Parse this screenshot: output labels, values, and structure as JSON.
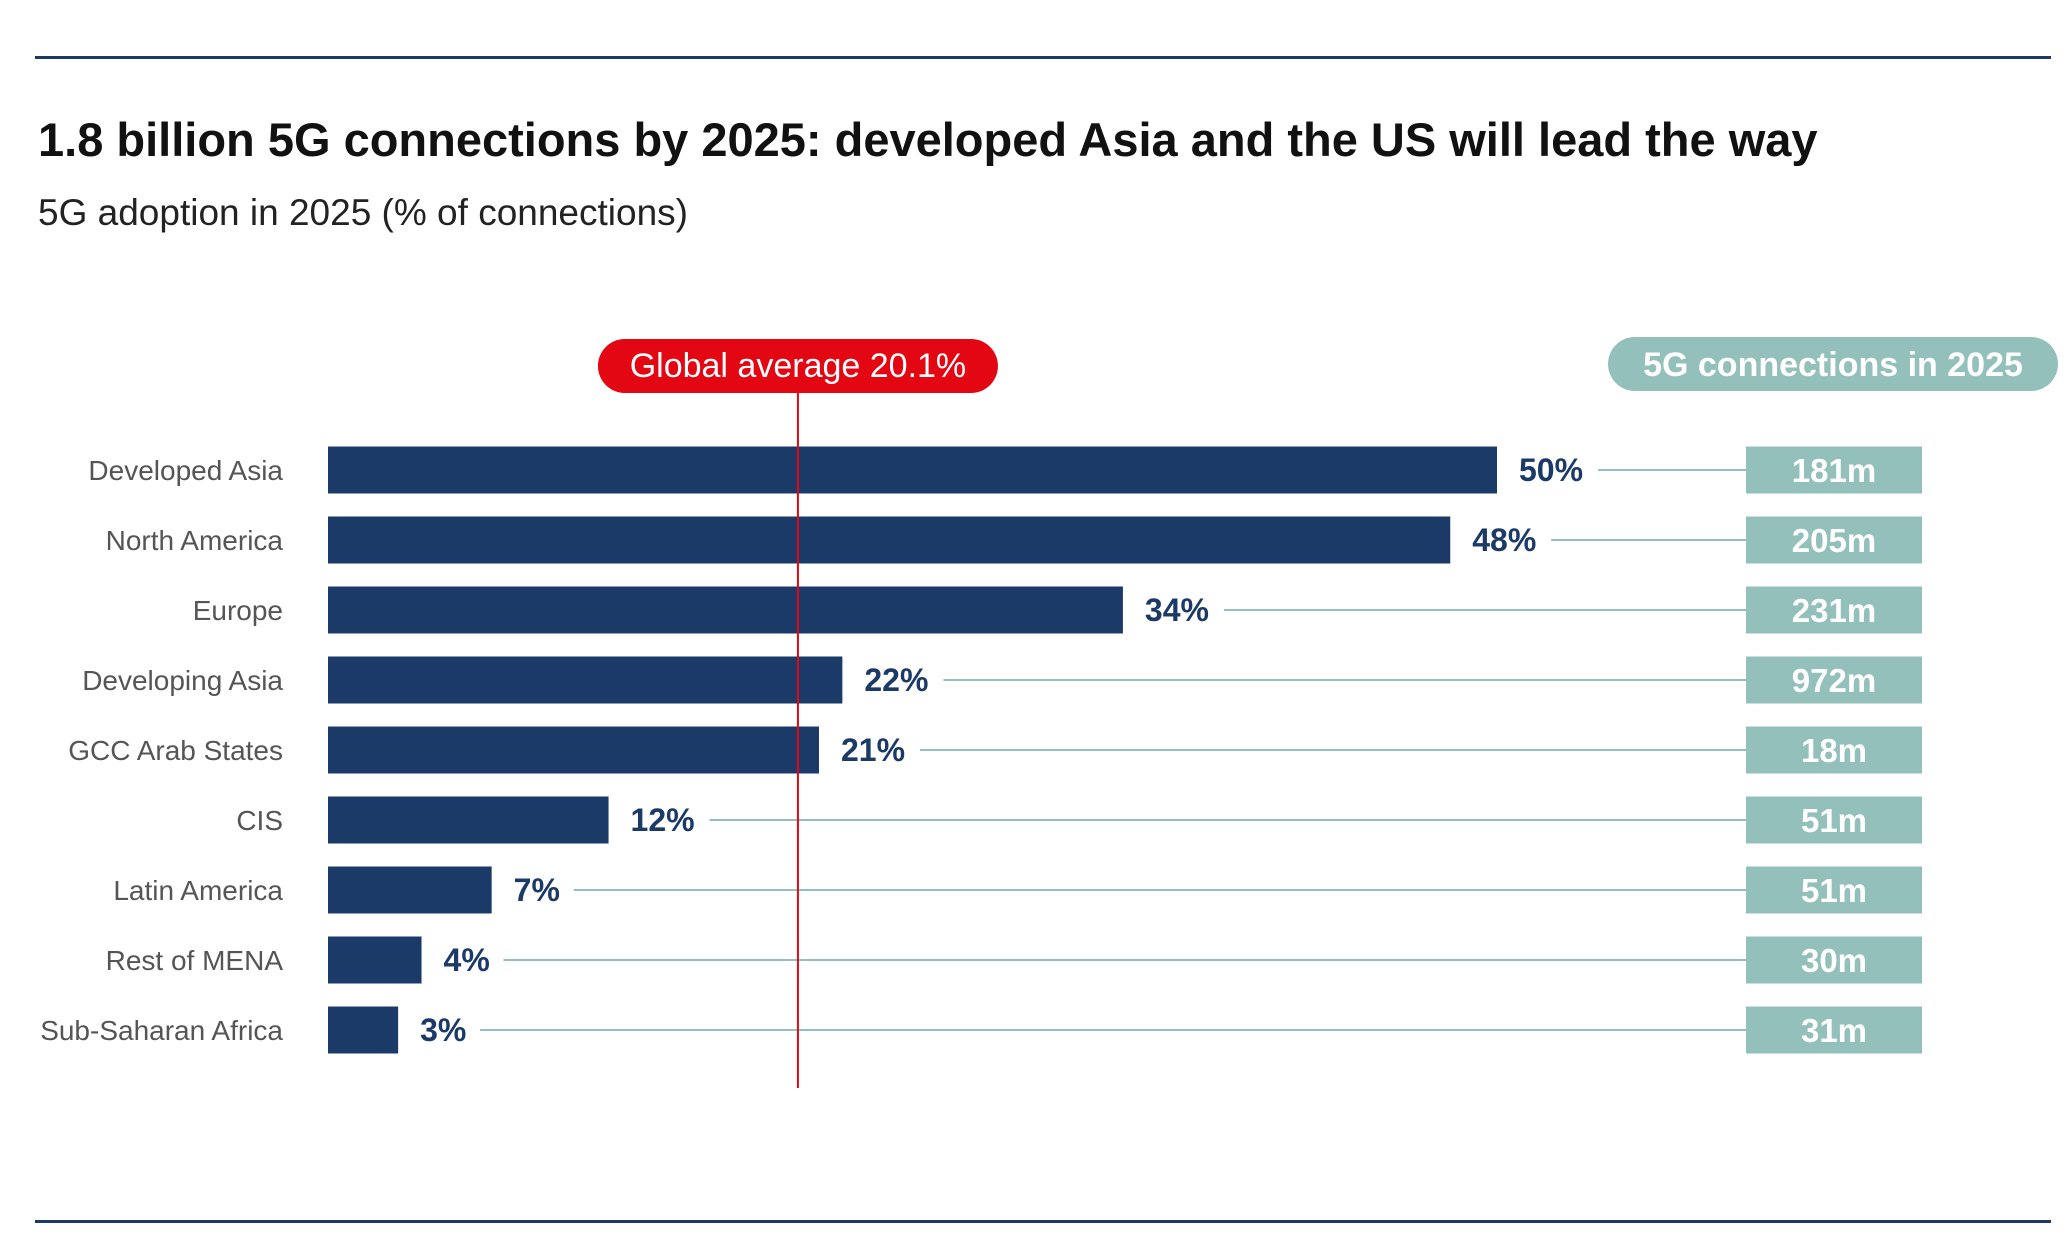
{
  "title": "1.8 billion 5G connections by 2025: developed Asia and the US will lead the way",
  "chart_data": {
    "type": "bar",
    "orientation": "horizontal",
    "title": "1.8 billion 5G connections by 2025: developed Asia and the US will lead the way",
    "subtitle": "5G adoption in 2025 (% of connections)",
    "categories": [
      "Developed Asia",
      "North America",
      "Europe",
      "Developing Asia",
      "GCC Arab States",
      "CIS",
      "Latin America",
      "Rest of MENA",
      "Sub-Saharan Africa"
    ],
    "values": [
      50,
      48,
      34,
      22,
      21,
      12,
      7,
      4,
      3
    ],
    "value_labels": [
      "50%",
      "48%",
      "34%",
      "22%",
      "21%",
      "12%",
      "7%",
      "4%",
      "3%"
    ],
    "unit": "%",
    "xlim": [
      0,
      50
    ],
    "reference_line": {
      "value": 20.1,
      "label": "Global average 20.1%"
    },
    "side_column": {
      "header": "5G connections in 2025",
      "values": [
        "181m",
        "205m",
        "231m",
        "972m",
        "18m",
        "51m",
        "51m",
        "30m",
        "31m"
      ]
    },
    "grid": false,
    "colors": {
      "bar": "#1b3a68",
      "reference": "#e30613",
      "side": "#93c0bb",
      "leader": "#93c0bb",
      "category_text": "#555555"
    }
  }
}
